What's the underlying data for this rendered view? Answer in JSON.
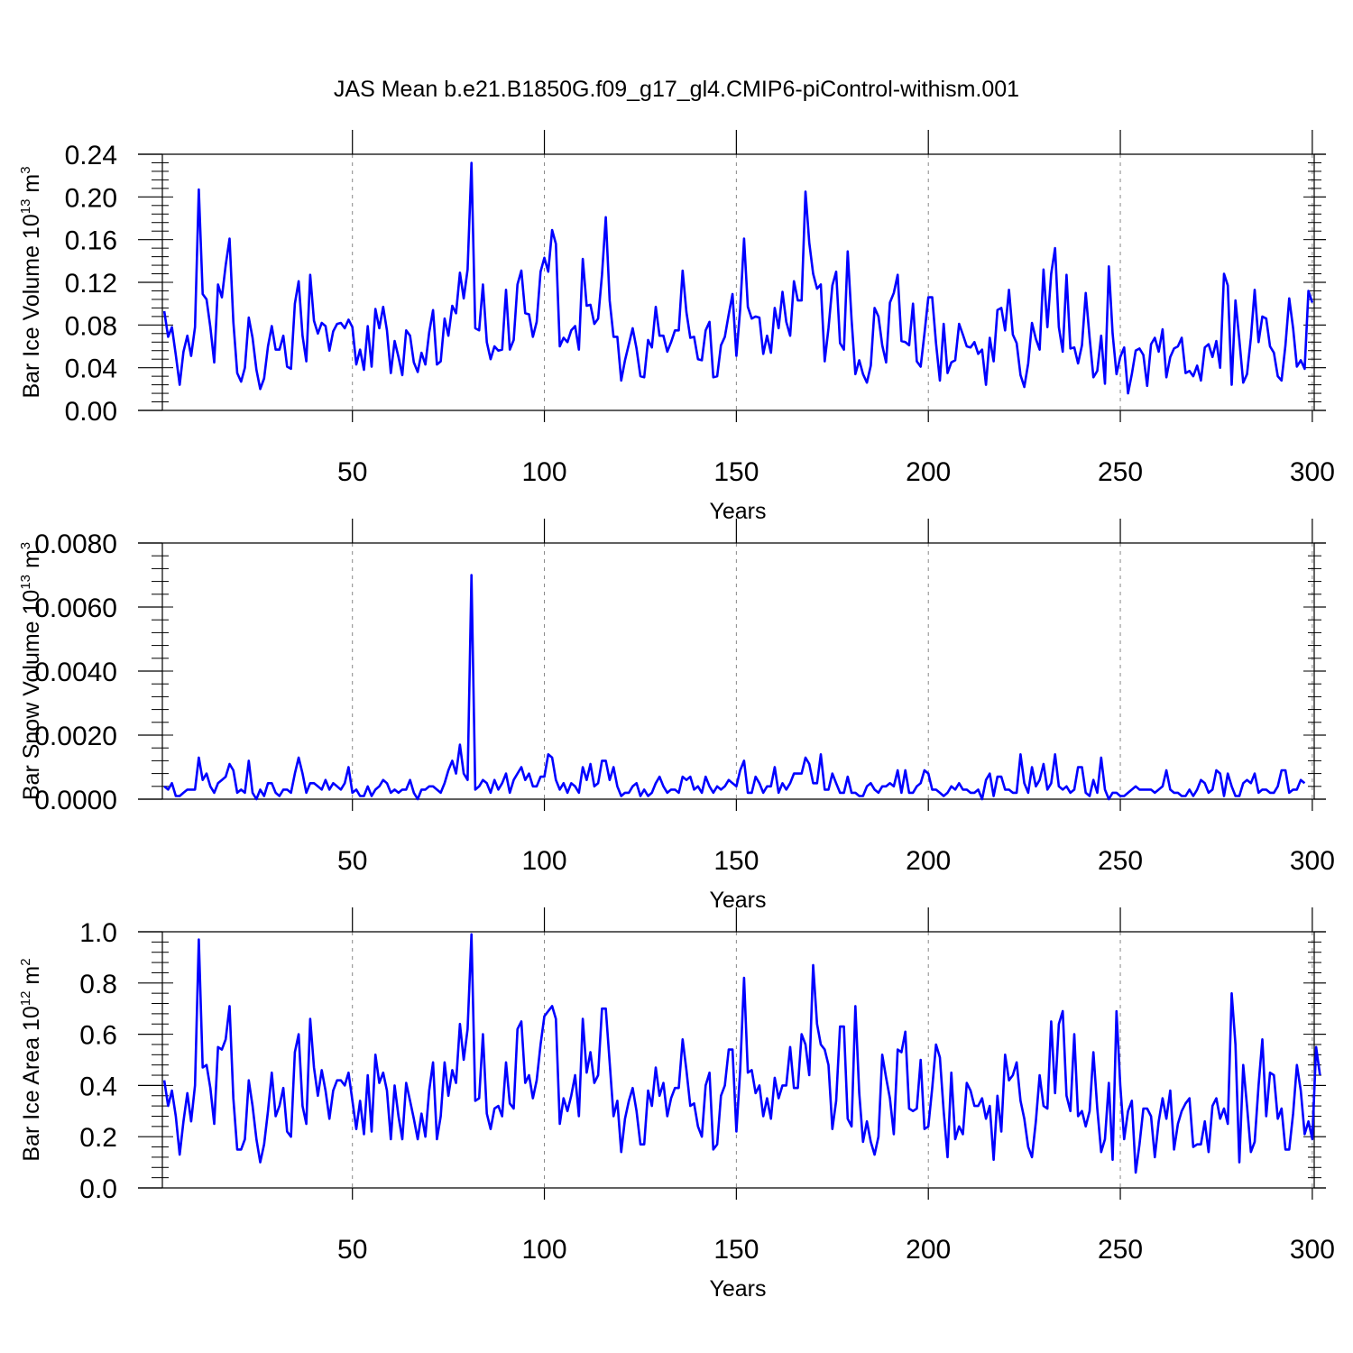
{
  "title": "JAS Mean b.e21.B1850G.f09_g17_gl4.CMIP6-piControl-withism.001",
  "line_color": "#0000ff",
  "chart_data": [
    {
      "type": "line",
      "xlabel": "Years",
      "ylabel": {
        "main": "Bar Ice Volume 10",
        "exp": "13",
        "unit": " m",
        "unit_exp": "3"
      },
      "xlim": [
        0.5,
        300.5
      ],
      "ylim": [
        0.0,
        0.24
      ],
      "xticks": [
        50,
        100,
        150,
        200,
        250,
        300
      ],
      "yticks": [
        "0.00",
        "0.04",
        "0.08",
        "0.12",
        "0.16",
        "0.20",
        "0.24"
      ],
      "grid_x": "dashed at major x ticks",
      "series": [
        {
          "x_start": 1,
          "values": [
            0.093,
            0.069,
            0.078,
            0.052,
            0.024,
            0.055,
            0.07,
            0.051,
            0.078,
            0.207,
            0.109,
            0.104,
            0.078,
            0.045,
            0.118,
            0.106,
            0.136,
            0.161,
            0.083,
            0.035,
            0.027,
            0.04,
            0.087,
            0.068,
            0.038,
            0.02,
            0.03,
            0.06,
            0.079,
            0.057,
            0.057,
            0.07,
            0.041,
            0.039,
            0.1,
            0.121,
            0.07,
            0.046,
            0.127,
            0.084,
            0.072,
            0.082,
            0.079,
            0.056,
            0.074,
            0.081,
            0.082,
            0.077,
            0.085,
            0.078,
            0.043,
            0.057,
            0.038,
            0.079,
            0.041,
            0.095,
            0.077,
            0.097,
            0.075,
            0.035,
            0.065,
            0.05,
            0.033,
            0.075,
            0.07,
            0.045,
            0.036,
            0.054,
            0.043,
            0.073,
            0.094,
            0.043,
            0.046,
            0.086,
            0.07,
            0.098,
            0.091,
            0.129,
            0.105,
            0.132,
            0.232,
            0.077,
            0.075,
            0.118,
            0.064,
            0.048,
            0.06,
            0.056,
            0.057,
            0.113,
            0.057,
            0.066,
            0.118,
            0.131,
            0.091,
            0.09,
            0.069,
            0.083,
            0.13,
            0.143,
            0.13,
            0.169,
            0.156,
            0.06,
            0.068,
            0.064,
            0.075,
            0.079,
            0.057,
            0.142,
            0.098,
            0.099,
            0.081,
            0.086,
            0.127,
            0.181,
            0.103,
            0.069,
            0.069,
            0.028,
            0.047,
            0.062,
            0.077,
            0.058,
            0.032,
            0.031,
            0.066,
            0.059,
            0.097,
            0.07,
            0.07,
            0.055,
            0.064,
            0.075,
            0.075,
            0.131,
            0.092,
            0.068,
            0.069,
            0.048,
            0.047,
            0.075,
            0.083,
            0.031,
            0.032,
            0.061,
            0.069,
            0.09,
            0.109,
            0.051,
            0.095,
            0.161,
            0.097,
            0.086,
            0.088,
            0.087,
            0.053,
            0.07,
            0.054,
            0.096,
            0.077,
            0.111,
            0.083,
            0.07,
            0.121,
            0.103,
            0.103,
            0.205,
            0.157,
            0.128,
            0.114,
            0.118,
            0.046,
            0.077,
            0.117,
            0.13,
            0.063,
            0.057,
            0.149,
            0.085,
            0.034,
            0.047,
            0.034,
            0.026,
            0.042,
            0.096,
            0.088,
            0.061,
            0.045,
            0.101,
            0.11,
            0.127,
            0.065,
            0.064,
            0.061,
            0.1,
            0.046,
            0.041,
            0.072,
            0.106,
            0.106,
            0.063,
            0.028,
            0.081,
            0.035,
            0.045,
            0.047,
            0.081,
            0.071,
            0.06,
            0.059,
            0.064,
            0.053,
            0.057,
            0.024,
            0.068,
            0.046,
            0.094,
            0.096,
            0.075,
            0.113,
            0.071,
            0.063,
            0.033,
            0.022,
            0.044,
            0.082,
            0.067,
            0.057,
            0.132,
            0.078,
            0.128,
            0.152,
            0.078,
            0.055,
            0.127,
            0.058,
            0.059,
            0.044,
            0.061,
            0.11,
            0.068,
            0.031,
            0.037,
            0.07,
            0.025,
            0.135,
            0.072,
            0.034,
            0.05,
            0.059,
            0.016,
            0.034,
            0.056,
            0.058,
            0.052,
            0.023,
            0.062,
            0.068,
            0.055,
            0.076,
            0.031,
            0.05,
            0.058,
            0.06,
            0.068,
            0.035,
            0.037,
            0.032,
            0.042,
            0.028,
            0.059,
            0.062,
            0.05,
            0.065,
            0.04,
            0.128,
            0.117,
            0.024,
            0.103,
            0.066,
            0.026,
            0.034,
            0.068,
            0.113,
            0.064,
            0.088,
            0.086,
            0.06,
            0.054,
            0.032,
            0.028,
            0.061,
            0.105,
            0.077,
            0.041,
            0.047,
            0.039,
            0.112,
            0.101
          ]
        }
      ]
    },
    {
      "type": "line",
      "xlabel": "Years",
      "ylabel": {
        "main": "Bar Snow Volume 10",
        "exp": "13",
        "unit": " m",
        "unit_exp": "3"
      },
      "xlim": [
        0.5,
        300.5
      ],
      "ylim": [
        0.0,
        0.008
      ],
      "xticks": [
        50,
        100,
        150,
        200,
        250,
        300
      ],
      "yticks": [
        "0.0000",
        "0.0020",
        "0.0040",
        "0.0060",
        "0.0080"
      ],
      "grid_x": "dashed at major x ticks",
      "series": [
        {
          "x_start": 1,
          "values": [
            0.0004,
            0.0003,
            0.0005,
            0.0001,
            0.0001,
            0.0002,
            0.0003,
            0.0003,
            0.0003,
            0.0013,
            0.0006,
            0.0008,
            0.0004,
            0.0002,
            0.0005,
            0.0006,
            0.0007,
            0.0011,
            0.0009,
            0.0002,
            0.0003,
            0.0002,
            0.0012,
            0.0002,
            0.0,
            0.0003,
            0.0001,
            0.0005,
            0.0005,
            0.0002,
            0.0001,
            0.0003,
            0.0003,
            0.0002,
            0.0008,
            0.0013,
            0.0008,
            0.0002,
            0.0005,
            0.0005,
            0.0004,
            0.0003,
            0.0006,
            0.0003,
            0.0005,
            0.0004,
            0.0003,
            0.0005,
            0.001,
            0.0002,
            0.0003,
            0.0001,
            0.0001,
            0.0004,
            0.0001,
            0.0003,
            0.0004,
            0.0006,
            0.0005,
            0.0002,
            0.0003,
            0.0002,
            0.0003,
            0.0003,
            0.0006,
            0.0002,
            0.0,
            0.0003,
            0.0003,
            0.0004,
            0.0004,
            0.0003,
            0.0002,
            0.0005,
            0.0009,
            0.0012,
            0.0008,
            0.0017,
            0.0008,
            0.0006,
            0.007,
            0.0003,
            0.0004,
            0.0006,
            0.0005,
            0.0002,
            0.0006,
            0.0003,
            0.0005,
            0.0008,
            0.0002,
            0.0006,
            0.0008,
            0.001,
            0.0006,
            0.0008,
            0.0004,
            0.0004,
            0.0007,
            0.0007,
            0.0014,
            0.0013,
            0.0006,
            0.0003,
            0.0005,
            0.0002,
            0.0005,
            0.0004,
            0.0002,
            0.001,
            0.0006,
            0.0011,
            0.0004,
            0.0005,
            0.0012,
            0.0012,
            0.0006,
            0.001,
            0.0004,
            0.0001,
            0.0002,
            0.0002,
            0.0004,
            0.0005,
            0.0001,
            0.0003,
            0.0001,
            0.0002,
            0.0005,
            0.0007,
            0.0004,
            0.0002,
            0.0003,
            0.0003,
            0.0002,
            0.0007,
            0.0006,
            0.0007,
            0.0003,
            0.0004,
            0.0002,
            0.0007,
            0.0004,
            0.0002,
            0.0004,
            0.0003,
            0.0004,
            0.0006,
            0.0005,
            0.0004,
            0.0009,
            0.0012,
            0.0002,
            0.0002,
            0.0007,
            0.0005,
            0.0002,
            0.0004,
            0.0004,
            0.001,
            0.0002,
            0.0005,
            0.0003,
            0.0005,
            0.0008,
            0.0008,
            0.0008,
            0.0013,
            0.0011,
            0.0005,
            0.0005,
            0.0014,
            0.0003,
            0.0003,
            0.0008,
            0.0005,
            0.0002,
            0.0002,
            0.0007,
            0.0002,
            0.0002,
            0.0001,
            0.0001,
            0.0004,
            0.0005,
            0.0003,
            0.0002,
            0.0004,
            0.0004,
            0.0005,
            0.0004,
            0.0009,
            0.0002,
            0.0009,
            0.0002,
            0.0002,
            0.0004,
            0.0005,
            0.0009,
            0.0008,
            0.0003,
            0.0003,
            0.0002,
            0.0001,
            0.0002,
            0.0004,
            0.0003,
            0.0005,
            0.0003,
            0.0003,
            0.0002,
            0.0002,
            0.0003,
            0.0,
            0.0006,
            0.0008,
            0.0001,
            0.0007,
            0.0007,
            0.0003,
            0.0003,
            0.0002,
            0.0002,
            0.0014,
            0.0005,
            0.0002,
            0.001,
            0.0004,
            0.0006,
            0.0011,
            0.0003,
            0.0005,
            0.0014,
            0.0004,
            0.0003,
            0.0004,
            0.0002,
            0.0003,
            0.001,
            0.001,
            0.0002,
            0.0001,
            0.0006,
            0.0002,
            0.0013,
            0.0003,
            0.0,
            0.0002,
            0.0002,
            0.0001,
            0.0001,
            0.0002,
            0.0003,
            0.0004,
            0.0003,
            0.0003,
            0.0003,
            0.0003,
            0.0002,
            0.0003,
            0.0004,
            0.0009,
            0.0003,
            0.0002,
            0.0002,
            0.0001,
            0.0001,
            0.0003,
            0.0001,
            0.0003,
            0.0006,
            0.0005,
            0.0002,
            0.0003,
            0.0009,
            0.0008,
            0.0001,
            0.0008,
            0.0004,
            0.0001,
            0.0001,
            0.0005,
            0.0006,
            0.0005,
            0.0008,
            0.0002,
            0.0003,
            0.0003,
            0.0002,
            0.0002,
            0.0004,
            0.0009,
            0.0009,
            0.0002,
            0.0003,
            0.0003,
            0.0006,
            0.0005
          ]
        }
      ]
    },
    {
      "type": "line",
      "xlabel": "Years",
      "ylabel": {
        "main": "Bar Ice Area 10",
        "exp": "12",
        "unit": " m",
        "unit_exp": "2"
      },
      "xlim": [
        0.5,
        300.5
      ],
      "ylim": [
        0.0,
        1.0
      ],
      "xticks": [
        50,
        100,
        150,
        200,
        250,
        300
      ],
      "yticks": [
        "0.0",
        "0.2",
        "0.4",
        "0.6",
        "0.8",
        "1.0"
      ],
      "grid_x": "dashed at major x ticks",
      "series": [
        {
          "x_start": 1,
          "values": [
            0.42,
            0.32,
            0.38,
            0.28,
            0.13,
            0.26,
            0.37,
            0.26,
            0.4,
            0.97,
            0.47,
            0.48,
            0.39,
            0.25,
            0.55,
            0.54,
            0.58,
            0.71,
            0.35,
            0.15,
            0.15,
            0.19,
            0.42,
            0.32,
            0.19,
            0.1,
            0.17,
            0.3,
            0.45,
            0.28,
            0.32,
            0.39,
            0.22,
            0.2,
            0.53,
            0.6,
            0.32,
            0.25,
            0.66,
            0.47,
            0.36,
            0.46,
            0.38,
            0.27,
            0.38,
            0.42,
            0.42,
            0.4,
            0.45,
            0.34,
            0.23,
            0.34,
            0.21,
            0.44,
            0.22,
            0.52,
            0.41,
            0.45,
            0.38,
            0.19,
            0.4,
            0.28,
            0.19,
            0.41,
            0.34,
            0.27,
            0.19,
            0.29,
            0.2,
            0.38,
            0.49,
            0.19,
            0.28,
            0.49,
            0.36,
            0.46,
            0.41,
            0.64,
            0.5,
            0.62,
            0.99,
            0.34,
            0.35,
            0.6,
            0.29,
            0.23,
            0.31,
            0.32,
            0.28,
            0.49,
            0.33,
            0.31,
            0.62,
            0.65,
            0.41,
            0.44,
            0.35,
            0.42,
            0.56,
            0.67,
            0.69,
            0.71,
            0.66,
            0.25,
            0.35,
            0.3,
            0.36,
            0.44,
            0.28,
            0.66,
            0.45,
            0.53,
            0.41,
            0.44,
            0.7,
            0.7,
            0.49,
            0.28,
            0.34,
            0.14,
            0.27,
            0.34,
            0.39,
            0.3,
            0.17,
            0.17,
            0.38,
            0.32,
            0.47,
            0.36,
            0.41,
            0.28,
            0.35,
            0.39,
            0.39,
            0.58,
            0.46,
            0.32,
            0.33,
            0.24,
            0.2,
            0.4,
            0.45,
            0.15,
            0.17,
            0.36,
            0.4,
            0.54,
            0.54,
            0.22,
            0.46,
            0.82,
            0.45,
            0.46,
            0.37,
            0.4,
            0.28,
            0.35,
            0.27,
            0.43,
            0.35,
            0.4,
            0.4,
            0.55,
            0.39,
            0.39,
            0.6,
            0.56,
            0.44,
            0.87,
            0.64,
            0.56,
            0.54,
            0.48,
            0.23,
            0.34,
            0.63,
            0.63,
            0.27,
            0.24,
            0.71,
            0.37,
            0.18,
            0.26,
            0.18,
            0.13,
            0.2,
            0.52,
            0.43,
            0.35,
            0.21,
            0.54,
            0.53,
            0.61,
            0.31,
            0.3,
            0.31,
            0.5,
            0.23,
            0.24,
            0.39,
            0.56,
            0.51,
            0.3,
            0.12,
            0.45,
            0.19,
            0.24,
            0.21,
            0.41,
            0.38,
            0.32,
            0.32,
            0.35,
            0.27,
            0.32,
            0.11,
            0.36,
            0.22,
            0.52,
            0.42,
            0.44,
            0.49,
            0.34,
            0.27,
            0.16,
            0.12,
            0.26,
            0.44,
            0.32,
            0.31,
            0.65,
            0.37,
            0.64,
            0.69,
            0.36,
            0.3,
            0.6,
            0.28,
            0.3,
            0.24,
            0.3,
            0.53,
            0.31,
            0.14,
            0.19,
            0.41,
            0.11,
            0.69,
            0.4,
            0.19,
            0.3,
            0.34,
            0.06,
            0.17,
            0.31,
            0.31,
            0.28,
            0.12,
            0.26,
            0.35,
            0.27,
            0.38,
            0.15,
            0.25,
            0.3,
            0.33,
            0.35,
            0.16,
            0.17,
            0.17,
            0.26,
            0.14,
            0.32,
            0.35,
            0.27,
            0.31,
            0.25,
            0.76,
            0.56,
            0.1,
            0.48,
            0.32,
            0.14,
            0.18,
            0.4,
            0.58,
            0.28,
            0.45,
            0.44,
            0.27,
            0.31,
            0.15,
            0.15,
            0.29,
            0.48,
            0.38,
            0.21,
            0.26,
            0.19,
            0.55,
            0.44
          ]
        }
      ]
    }
  ]
}
